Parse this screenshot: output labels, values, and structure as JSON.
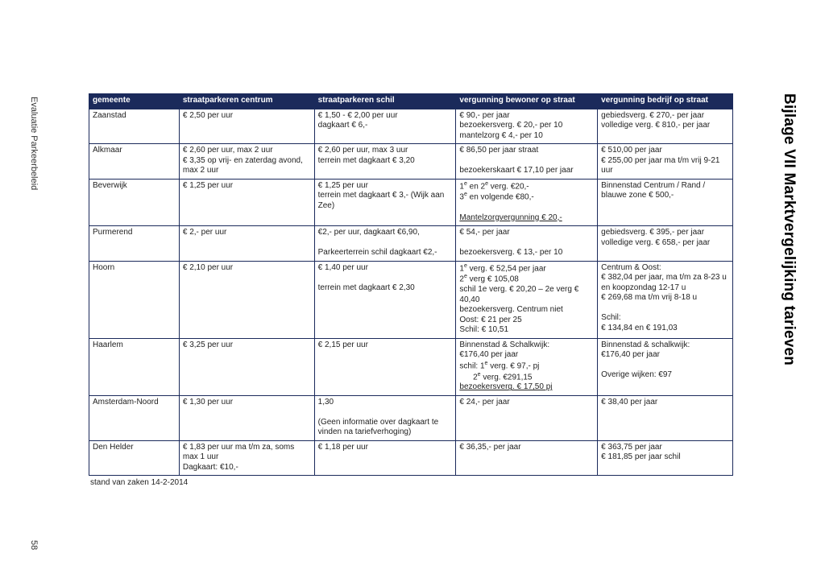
{
  "page": {
    "side_label": "Evaluatie Parkeerbeleid",
    "page_number": "58",
    "title": "Bijlage VII   Marktvergelijking tarieven",
    "caption": "stand van zaken 14-2-2014"
  },
  "table": {
    "header_bg": "#1b2a5b",
    "header_fg": "#ffffff",
    "border_color": "#1b2a5b",
    "columns": [
      "gemeente",
      "straatparkeren centrum",
      "straatparkeren schil",
      "vergunning bewoner op straat",
      "vergunning bedrijf op straat"
    ],
    "rows": [
      {
        "gemeente": "Zaanstad",
        "centrum": "€ 2,50 per uur",
        "schil": "€ 1,50 - € 2,00 per uur\ndagkaart € 6,-",
        "bewoner": "€ 90,- per jaar\nbezoekersverg. € 20,- per 10\nmantelzorg € 4,- per 10",
        "bedrijf": "gebiedsverg. € 270,- per jaar\nvolledige verg. € 810,- per jaar"
      },
      {
        "gemeente": "Alkmaar",
        "centrum": "€ 2,60 per uur, max 2 uur\n€ 3,35 op vrij- en zaterdag avond, max 2 uur",
        "schil": "€ 2,60 per uur, max 3 uur\nterrein met dagkaart € 3,20",
        "bewoner": "€ 86,50 per jaar straat\n\nbezoekerskaart € 17,10 per jaar",
        "bedrijf": "€ 510,00 per jaar\n€ 255,00 per jaar ma t/m vrij 9-21 uur"
      },
      {
        "gemeente": "Beverwijk",
        "centrum": "€ 1,25 per uur",
        "schil": "€ 1,25 per uur\nterrein met dagkaart € 3,- (Wijk aan Zee)",
        "bewoner_html": "1<sup>e</sup> en 2<sup>e</sup> verg. €20,-<br>3<sup>e</sup> en volgende €80,-<br><br><span class=\"u\">Mantelzorgvergunning € 20,-</span>",
        "bedrijf": "Binnenstad Centrum / Rand / blauwe zone € 500,-"
      },
      {
        "gemeente": "Purmerend",
        "centrum": "€ 2,- per uur",
        "schil": "€2,- per uur, dagkaart €6,90,\n\nParkeerterrein schil dagkaart €2,-",
        "bewoner": "€ 54,- per jaar\n\nbezoekersverg. € 13,- per 10",
        "bedrijf": "gebiedsverg. € 395,- per jaar\nvolledige verg. € 658,- per jaar"
      },
      {
        "gemeente": "Hoorn",
        "centrum": "€ 2,10 per uur",
        "schil": "€ 1,40 per uur\n\nterrein met dagkaart € 2,30",
        "bewoner_html": "1<sup>e</sup> verg. € 52,54 per jaar<br>2<sup>e</sup> verg € 105,08<br>schil 1e verg. € 20,20 – 2e verg € 40,40<br>bezoekersverg. Centrum niet<br>Oost: € 21 per 25<br>Schil: € 10,51",
        "bedrijf": "Centrum & Oost:\n€ 382,04 per jaar, ma t/m za 8-23 u en koopzondag 12-17 u\n€ 269,68 ma t/m vrij 8-18 u\n\nSchil:\n€ 134,84 en € 191,03"
      },
      {
        "gemeente": "Haarlem",
        "centrum": "€ 3,25 per uur",
        "schil": "€ 2,15 per uur",
        "bewoner_html": "Binnenstad &amp; Schalkwijk:<br>€176,40 per jaar<br>schil: 1<sup>e</sup> verg. € 97,- pj<br>&nbsp;&nbsp;&nbsp;&nbsp;&nbsp;&nbsp;2<sup>e</sup> verg. €291,15<br><span class=\"u\">bezoekersverg. € 17,50 pj</span>",
        "bedrijf": "Binnenstad & schalkwijk:\n€176,40 per jaar\n\nOverige wijken: €97"
      },
      {
        "gemeente": "Amsterdam-Noord",
        "centrum": "€ 1,30 per uur",
        "schil": "1,30\n\n(Geen informatie over dagkaart te vinden na tariefverhoging)",
        "bewoner": "€ 24,- per jaar",
        "bedrijf": "€ 38,40 per jaar"
      },
      {
        "gemeente": "Den Helder",
        "centrum": "€ 1,83 per uur ma t/m za, soms max 1 uur\nDagkaart: €10,-",
        "schil": "€ 1,18 per uur",
        "bewoner": "€ 36,35,- per jaar",
        "bedrijf": "€ 363,75 per jaar\n€ 181,85 per jaar schil"
      }
    ]
  }
}
